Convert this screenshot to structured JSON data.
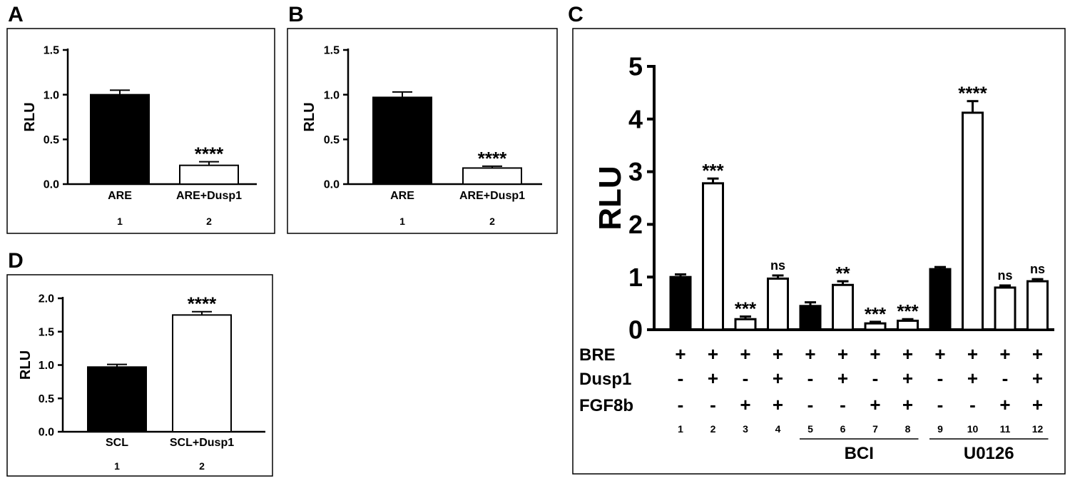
{
  "chart_data": [
    {
      "panel": "A",
      "type": "bar",
      "ylabel": "RLU",
      "ylim": [
        0,
        1.5
      ],
      "yticks": [
        "0.0",
        "0.5",
        "1.0",
        "1.5"
      ],
      "categories": [
        "ARE",
        "ARE+Dusp1"
      ],
      "lane_numbers": [
        "1",
        "2"
      ],
      "values": [
        1.0,
        0.21
      ],
      "errors": [
        0.05,
        0.04
      ],
      "fills": [
        "black",
        "white"
      ],
      "annotations": [
        "",
        "****"
      ]
    },
    {
      "panel": "B",
      "type": "bar",
      "ylabel": "RLU",
      "ylim": [
        0,
        1.5
      ],
      "yticks": [
        "0.0",
        "0.5",
        "1.0",
        "1.5"
      ],
      "categories": [
        "ARE",
        "ARE+Dusp1"
      ],
      "lane_numbers": [
        "1",
        "2"
      ],
      "values": [
        0.97,
        0.18
      ],
      "errors": [
        0.06,
        0.02
      ],
      "fills": [
        "black",
        "white"
      ],
      "annotations": [
        "",
        "****"
      ]
    },
    {
      "panel": "C",
      "type": "bar",
      "ylabel": "RLU",
      "ylim": [
        0,
        5
      ],
      "yticks": [
        "0",
        "1",
        "2",
        "3",
        "4",
        "5"
      ],
      "lane_numbers": [
        "1",
        "2",
        "3",
        "4",
        "5",
        "6",
        "7",
        "8",
        "9",
        "10",
        "11",
        "12"
      ],
      "values": [
        1.0,
        2.78,
        0.2,
        0.97,
        0.45,
        0.85,
        0.12,
        0.17,
        1.15,
        4.12,
        0.8,
        0.92
      ],
      "errors": [
        0.05,
        0.09,
        0.05,
        0.06,
        0.07,
        0.07,
        0.03,
        0.03,
        0.04,
        0.22,
        0.04,
        0.04
      ],
      "fills": [
        "black",
        "white",
        "white",
        "white",
        "black",
        "white",
        "white",
        "white",
        "black",
        "white",
        "white",
        "white"
      ],
      "annotations": [
        "",
        "***",
        "***",
        "ns",
        "",
        "**",
        "***",
        "***",
        "",
        "****",
        "ns",
        "ns"
      ],
      "conditions": [
        {
          "label": "BRE",
          "marks": [
            "+",
            "+",
            "+",
            "+",
            "+",
            "+",
            "+",
            "+",
            "+",
            "+",
            "+",
            "+"
          ]
        },
        {
          "label": "Dusp1",
          "marks": [
            "-",
            "+",
            "-",
            "+",
            "-",
            "+",
            "-",
            "+",
            "-",
            "+",
            "-",
            "+"
          ]
        },
        {
          "label": "FGF8b",
          "marks": [
            "-",
            "-",
            "+",
            "+",
            "-",
            "-",
            "+",
            "+",
            "-",
            "-",
            "+",
            "+"
          ]
        }
      ],
      "groups": [
        {
          "label": "BCI",
          "lanes": [
            5,
            8
          ]
        },
        {
          "label": "U0126",
          "lanes": [
            9,
            12
          ]
        }
      ]
    },
    {
      "panel": "D",
      "type": "bar",
      "ylabel": "RLU",
      "ylim": [
        0,
        2.0
      ],
      "yticks": [
        "0.0",
        "0.5",
        "1.0",
        "1.5",
        "2.0"
      ],
      "categories": [
        "SCL",
        "SCL+Dusp1"
      ],
      "lane_numbers": [
        "1",
        "2"
      ],
      "values": [
        0.97,
        1.75
      ],
      "errors": [
        0.04,
        0.05
      ],
      "fills": [
        "black",
        "white"
      ],
      "annotations": [
        "",
        "****"
      ]
    }
  ]
}
